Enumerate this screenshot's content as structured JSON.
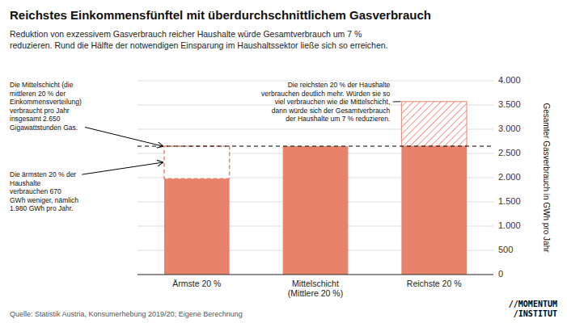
{
  "chart_data": {
    "type": "bar",
    "title": "Reichstes Einkommensfünftel mit überdurchschnittlichem Gasverbrauch",
    "subtitle": "Reduktion von exzessivem Gasverbrauch reicher Haushalte würde Gesamtverbrauch um 7 %\nreduzieren. Rund die Hälfte der notwendigen Einsparung im Haushaltssektor ließe sich so erreichen.",
    "categories": [
      "Ärmste 20 %",
      "Mittelschicht\n(Mittlere 20 %)",
      "Reichste 20 %"
    ],
    "stacked": true,
    "series": [
      {
        "color": "#E8826A",
        "values": [
          1980,
          2650,
          2650
        ]
      },
      {
        "color": "#E8826A",
        "line_style": "dashed",
        "values": [
          670,
          null,
          null
        ]
      },
      {
        "color": "#E8826A",
        "marker": "hatch",
        "values": [
          null,
          null,
          920
        ]
      }
    ],
    "reference_line": {
      "value": 2650,
      "line_style": "dashed"
    },
    "ylabel": "Gesamter Gasverbrauch in GWh pro Jahr",
    "ylim": [
      0,
      4000
    ],
    "yticks": [
      0,
      500,
      {
        "value": 1000,
        "label": "1.000"
      },
      {
        "value": 1500,
        "label": "1.500"
      },
      {
        "value": 2000,
        "label": "2.000"
      },
      {
        "value": 2500,
        "label": "2.500"
      },
      {
        "value": 3000,
        "label": "3.000"
      },
      {
        "value": 3500,
        "label": "3.500"
      },
      {
        "value": 4000,
        "label": "4.000"
      }
    ],
    "grid": true,
    "annotations": [
      {
        "text": "Die Mittelschicht (die\nmittleren 20 % der\nEinkommensverteilung)\nverbraucht pro Jahr\ninsgesamt 2.650\nGigawattstunden Gas."
      },
      {
        "text": "Die ärmsten 20 % der\nHaushalte\nverbrauchen 670\nGWh weniger, nämlich\n1.980 GWh pro Jahr."
      },
      {
        "text": "Die reichsten 20 % der Haushalte\nverbrauchen deutlich mehr. Würden sie so\nviel verbrauchen wie die Mittelschicht,\ndann würde sich der Gesamtverbrauch\nder Haushalte um 7 % reduzieren."
      }
    ],
    "source": "Quelle: Statistik Austria, Konsumerhebung 2019/20; Eigene Berechnung",
    "logo": "//MOMENTUM\n/INSTITUT"
  }
}
